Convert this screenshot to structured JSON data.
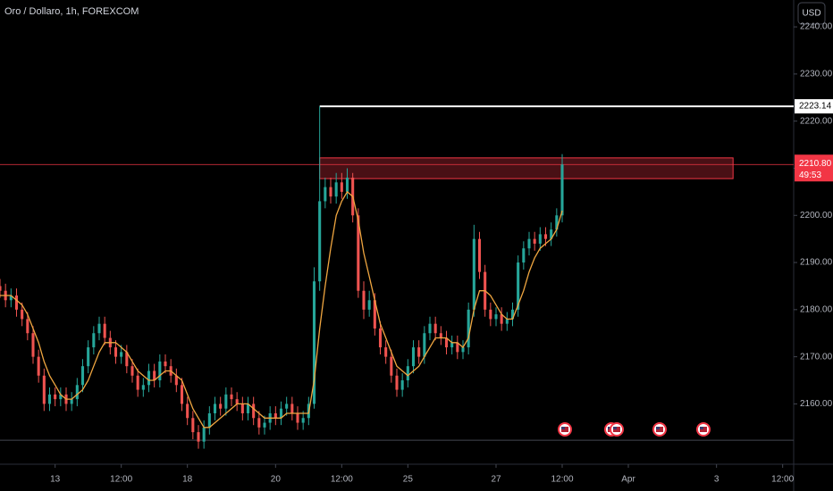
{
  "chart_data": {
    "type": "candlestick",
    "title": "Oro / Dollaro, 1h, FOREXCOM",
    "currency": "USD",
    "colors": {
      "up": "#26a69a",
      "down": "#ef5350"
    },
    "open": [
      2185,
      2184,
      2182,
      2183,
      2180,
      2178,
      2175,
      2170,
      2166,
      2160,
      2162,
      2161,
      2162,
      2160,
      2161,
      2164,
      2168,
      2172,
      2175,
      2177,
      2174,
      2172,
      2170,
      2171,
      2168,
      2166,
      2163,
      2164,
      2167,
      2165,
      2169,
      2168,
      2166,
      2164,
      2160,
      2157,
      2154,
      2152,
      2155,
      2158,
      2160,
      2159,
      2162,
      2161,
      2160,
      2158,
      2160,
      2157,
      2155,
      2156,
      2158,
      2157,
      2159,
      2160,
      2158,
      2156,
      2157,
      2160,
      2186,
      2203,
      2206,
      2204,
      2207,
      2205,
      2208,
      2200,
      2184,
      2180,
      2182,
      2176,
      2172,
      2170,
      2166,
      2163,
      2165,
      2168,
      2172,
      2170,
      2175,
      2177,
      2175,
      2174,
      2172,
      2173,
      2171,
      2172,
      2180,
      2195,
      2188,
      2180,
      2178,
      2179,
      2177,
      2178,
      2180,
      2190,
      2193,
      2195,
      2194,
      2196,
      2195,
      2197,
      2200
    ],
    "high": [
      2186.5,
      2185.5,
      2184.5,
      2184.5,
      2181.5,
      2179.5,
      2176.5,
      2171.5,
      2167.5,
      2163.5,
      2163.5,
      2163.5,
      2163.5,
      2162.5,
      2165.5,
      2169.5,
      2173.5,
      2176.5,
      2178.5,
      2178.5,
      2175.5,
      2173.5,
      2172.5,
      2172.5,
      2169.5,
      2167.5,
      2165.5,
      2168.5,
      2168.5,
      2170.5,
      2170.5,
      2169.5,
      2167.5,
      2165.5,
      2161.5,
      2158.5,
      2155.5,
      2156.5,
      2159.5,
      2161.5,
      2161.5,
      2163.5,
      2163.5,
      2162.5,
      2161.5,
      2161.5,
      2161.5,
      2158.5,
      2157.5,
      2159.5,
      2159.5,
      2160.5,
      2161.5,
      2161.5,
      2159.5,
      2158.5,
      2161.5,
      2189,
      2223.14,
      2208,
      2208,
      2209,
      2209,
      2210,
      2209,
      2201.5,
      2186,
      2184,
      2183.5,
      2177.5,
      2173.5,
      2171.5,
      2167.5,
      2166.5,
      2169.5,
      2173.5,
      2173.5,
      2176.5,
      2178.5,
      2178.5,
      2176.5,
      2175.5,
      2174.5,
      2174.5,
      2173.5,
      2181.5,
      2198,
      2196.5,
      2189.5,
      2181.5,
      2180.5,
      2180.5,
      2179.5,
      2181.5,
      2191.5,
      2194.5,
      2196.5,
      2196.5,
      2197.5,
      2197.5,
      2198.5,
      2201.5,
      2213
    ],
    "low": [
      2182.5,
      2180.5,
      2180.5,
      2178.5,
      2176.5,
      2173.5,
      2168.5,
      2164.5,
      2158.5,
      2158.5,
      2159.5,
      2159.5,
      2158.5,
      2158.5,
      2159.5,
      2162.5,
      2166.5,
      2170.5,
      2173.5,
      2172.5,
      2170.5,
      2168.5,
      2168.5,
      2166.5,
      2164.5,
      2161.5,
      2161.5,
      2162.5,
      2163.5,
      2163.5,
      2166.5,
      2164.5,
      2162.5,
      2158.5,
      2155.5,
      2152.5,
      2150.5,
      2150.5,
      2153.5,
      2156.5,
      2157.5,
      2157.5,
      2159.5,
      2158.5,
      2156.5,
      2156.5,
      2155.5,
      2153.5,
      2153.5,
      2154.5,
      2155.5,
      2155.5,
      2157.5,
      2156.5,
      2154.5,
      2154.5,
      2155.5,
      2159,
      2184,
      2201.5,
      2202.5,
      2202.5,
      2203.5,
      2203.5,
      2198.5,
      2182.5,
      2178,
      2178.5,
      2174.5,
      2170.5,
      2168.5,
      2164.5,
      2161.5,
      2161.5,
      2163.5,
      2166.5,
      2168.5,
      2168.5,
      2173.5,
      2173.5,
      2172.5,
      2170.5,
      2170.5,
      2169.5,
      2169.5,
      2170.5,
      2178.5,
      2186.5,
      2178.5,
      2176.5,
      2176.5,
      2175.5,
      2175.5,
      2176.5,
      2178.5,
      2188.5,
      2191.5,
      2192.5,
      2192.5,
      2193.5,
      2193.5,
      2195.5,
      2198.5
    ],
    "close": [
      2184,
      2182,
      2183,
      2180,
      2178,
      2175,
      2170,
      2166,
      2160,
      2162,
      2161,
      2162,
      2160,
      2161,
      2164,
      2168,
      2172,
      2175,
      2177,
      2174,
      2172,
      2170,
      2171,
      2168,
      2166,
      2163,
      2164,
      2167,
      2165,
      2169,
      2168,
      2166,
      2164,
      2160,
      2157,
      2154,
      2152,
      2155,
      2158,
      2160,
      2159,
      2162,
      2161,
      2160,
      2158,
      2160,
      2157,
      2155,
      2156,
      2158,
      2157,
      2159,
      2160,
      2158,
      2156,
      2157,
      2160,
      2186,
      2203,
      2206,
      2204,
      2207,
      2205,
      2208,
      2200,
      2184,
      2180,
      2182,
      2176,
      2172,
      2170,
      2166,
      2163,
      2165,
      2168,
      2172,
      2170,
      2175,
      2177,
      2175,
      2174,
      2172,
      2173,
      2171,
      2172,
      2180,
      2195,
      2188,
      2180,
      2178,
      2179,
      2177,
      2178,
      2180,
      2190,
      2193,
      2195,
      2194,
      2196,
      2195,
      2197,
      2200,
      2210.8
    ],
    "ma": {
      "color": "#f0a640",
      "values": [
        2183,
        2183,
        2183,
        2182,
        2181,
        2179,
        2176,
        2173,
        2169,
        2166,
        2164,
        2162,
        2161,
        2161,
        2162,
        2163,
        2165,
        2168,
        2171,
        2173,
        2173,
        2173,
        2172,
        2171,
        2169,
        2167,
        2166,
        2165,
        2165,
        2166,
        2167,
        2167,
        2166,
        2165,
        2162,
        2159,
        2157,
        2155,
        2155,
        2156,
        2157,
        2158,
        2159,
        2160,
        2160,
        2160,
        2159,
        2158,
        2157,
        2157,
        2157,
        2157,
        2158,
        2158,
        2158,
        2158,
        2158,
        2165,
        2176,
        2185,
        2193,
        2200,
        2203,
        2205,
        2204,
        2199,
        2192,
        2187,
        2182,
        2177,
        2174,
        2171,
        2168,
        2167,
        2166,
        2167,
        2168,
        2170,
        2172,
        2174,
        2174,
        2174,
        2173,
        2173,
        2172,
        2174,
        2180,
        2184,
        2184,
        2183,
        2181,
        2179,
        2178,
        2178,
        2181,
        2184,
        2188,
        2191,
        2193,
        2194,
        2195,
        2197,
        2201
      ]
    },
    "xlim": [
      0,
      144
    ],
    "xticks": [
      {
        "value": 10,
        "label": "13"
      },
      {
        "value": 22,
        "label": "12:00"
      },
      {
        "value": 34,
        "label": "18"
      },
      {
        "value": 50,
        "label": "20"
      },
      {
        "value": 62,
        "label": "12:00"
      },
      {
        "value": 74,
        "label": "25"
      },
      {
        "value": 90,
        "label": "27"
      },
      {
        "value": 102,
        "label": "12:00"
      },
      {
        "value": 114,
        "label": "Apr"
      },
      {
        "value": 130,
        "label": "3"
      },
      {
        "value": 142,
        "label": "12:00"
      }
    ],
    "ylim": [
      2147.2,
      2245.7
    ],
    "yticks": [
      {
        "value": 2160,
        "label": "2160.00"
      },
      {
        "value": 2170,
        "label": "2170.00"
      },
      {
        "value": 2180,
        "label": "2180.00"
      },
      {
        "value": 2190,
        "label": "2190.00"
      },
      {
        "value": 2200,
        "label": "2200.00"
      },
      {
        "value": 2210,
        "label": "2210.00"
      },
      {
        "value": 2220,
        "label": "2220.00"
      },
      {
        "value": 2230,
        "label": "2230.00"
      },
      {
        "value": 2240,
        "label": "2240.00"
      }
    ],
    "annotations": {
      "level": {
        "value": 2223.14,
        "start": 58,
        "color": "#ffffff"
      },
      "zone": {
        "low": 2207.8,
        "high": 2212.2,
        "start": 58,
        "end": 133,
        "color": "#f23645"
      },
      "last_price": {
        "value": 2210.8,
        "label": "2210.80",
        "countdown": "49:53",
        "color": "#f23645"
      },
      "support": 2152.3
    }
  }
}
